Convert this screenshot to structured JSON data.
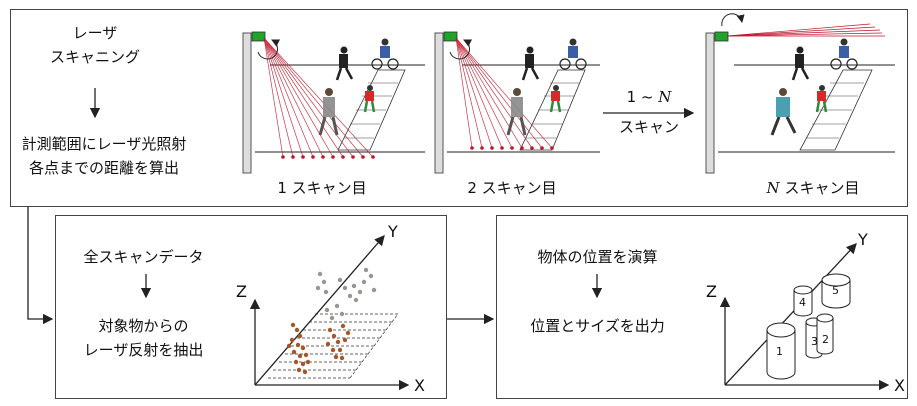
{
  "top_panel": {
    "title_line1": "レーザ",
    "title_line2": "スキャニング",
    "desc_line1": "計測範囲にレーザ光照射",
    "desc_line2": "各点までの距離を算出",
    "scan1_label": "1 スキャン目",
    "scan2_label": "2 スキャン目",
    "scanN_label_N": "N",
    "scanN_label_rest": " スキャン目",
    "between_line1": "1 ~ ",
    "between_line1_N": "N",
    "between_line2": "スキャン"
  },
  "bottom_left_panel": {
    "line1": "全スキャンデータ",
    "line2": "対象物からの",
    "line3": "レーザ反射を抽出",
    "axis_x": "X",
    "axis_y": "Y",
    "axis_z": "Z"
  },
  "bottom_right_panel": {
    "line1": "物体の位置を演算",
    "line2": "位置とサイズを出力",
    "axis_x": "X",
    "axis_y": "Y",
    "axis_z": "Z",
    "objects": [
      "1",
      "2",
      "3",
      "4",
      "5"
    ]
  },
  "colors": {
    "laser": "#c0152b",
    "sensor": "#1fa32b",
    "dot_brown": "#a5562a",
    "dot_gray": "#9a9490"
  }
}
